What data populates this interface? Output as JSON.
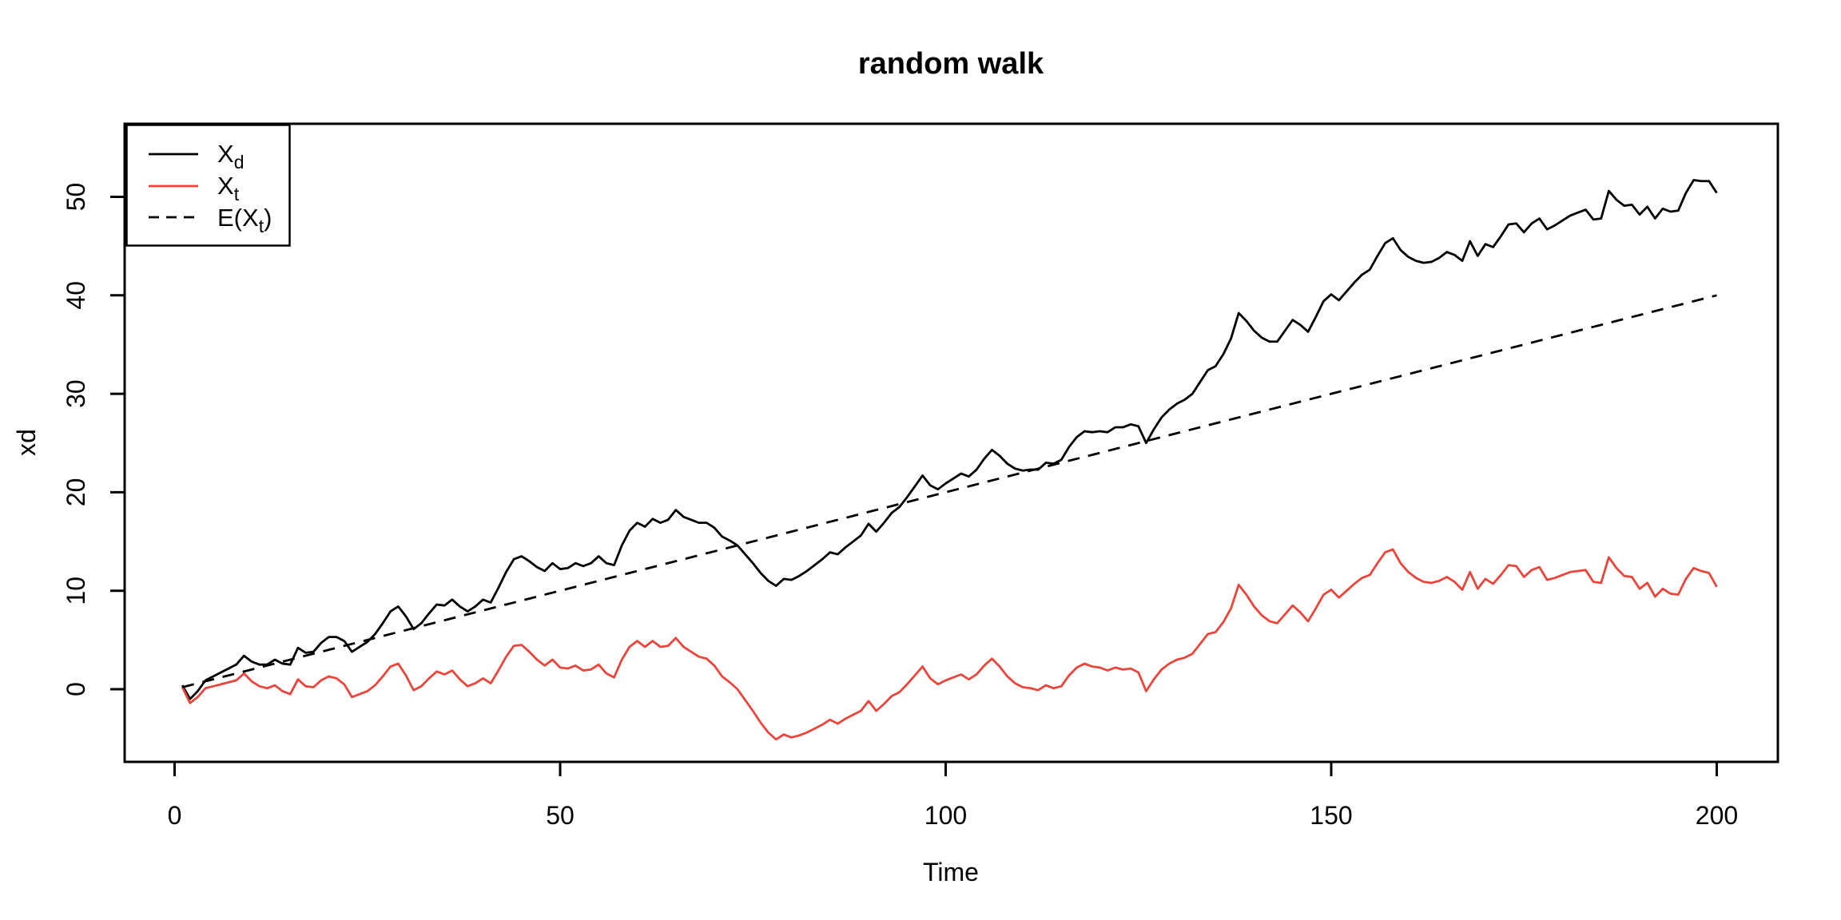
{
  "title": "random walk",
  "axes": {
    "x_label": "Time",
    "y_label": "xd",
    "x_ticks": [
      0,
      50,
      100,
      150,
      200
    ],
    "y_ticks": [
      0,
      10,
      20,
      30,
      40,
      50
    ]
  },
  "legend": {
    "items": [
      {
        "pre": "X",
        "sub": "d",
        "post": "",
        "color": "#000000",
        "dashed": false
      },
      {
        "pre": "X",
        "sub": "t",
        "post": "",
        "color": "#e8463c",
        "dashed": false
      },
      {
        "pre": "E(X",
        "sub": "t",
        "post": ")",
        "color": "#000000",
        "dashed": true
      }
    ]
  },
  "colors": {
    "black_series": "#000000",
    "red_series": "#e8463c",
    "trend_series": "#000000",
    "frame": "#000000",
    "background": "#ffffff"
  },
  "chart_data": {
    "type": "line",
    "title": "random walk",
    "xlabel": "Time",
    "ylabel": "xd",
    "x_range_shown": [
      -7,
      208
    ],
    "y_range_shown": [
      -7.4,
      57.4
    ],
    "grid": false,
    "legend_position": "topleft",
    "t": {
      "start": 1,
      "end": 200,
      "step": 1
    },
    "series": [
      {
        "name": "X_d",
        "style": "solid",
        "color": "#000000",
        "values": [
          0.4,
          -1.0,
          -0.2,
          0.9,
          1.3,
          1.7,
          2.1,
          2.5,
          3.4,
          2.8,
          2.5,
          2.5,
          3.0,
          2.6,
          2.5,
          4.2,
          3.7,
          3.8,
          4.7,
          5.3,
          5.3,
          4.9,
          3.8,
          4.3,
          4.8,
          5.6,
          6.7,
          7.9,
          8.4,
          7.4,
          6.1,
          6.7,
          7.7,
          8.6,
          8.5,
          9.1,
          8.4,
          7.9,
          8.4,
          9.1,
          8.8,
          10.3,
          11.9,
          13.2,
          13.5,
          13.0,
          12.4,
          12.0,
          12.8,
          12.2,
          12.3,
          12.8,
          12.5,
          12.8,
          13.5,
          12.8,
          12.6,
          14.6,
          16.1,
          16.9,
          16.5,
          17.3,
          16.9,
          17.2,
          18.2,
          17.5,
          17.2,
          16.9,
          16.9,
          16.4,
          15.5,
          15.1,
          14.6,
          13.7,
          12.8,
          11.8,
          11.0,
          10.5,
          11.2,
          11.1,
          11.5,
          12.0,
          12.6,
          13.2,
          13.9,
          13.7,
          14.4,
          15.0,
          15.6,
          16.8,
          16.0,
          16.9,
          17.9,
          18.5,
          19.5,
          20.6,
          21.7,
          20.7,
          20.3,
          20.9,
          21.4,
          21.9,
          21.6,
          22.3,
          23.4,
          24.3,
          23.7,
          22.9,
          22.4,
          22.2,
          22.3,
          22.3,
          23.0,
          22.9,
          23.3,
          24.6,
          25.6,
          26.2,
          26.1,
          26.2,
          26.1,
          26.6,
          26.6,
          26.9,
          26.7,
          25.0,
          26.4,
          27.6,
          28.4,
          29.0,
          29.4,
          30.0,
          31.2,
          32.4,
          32.8,
          34.0,
          35.6,
          38.2,
          37.4,
          36.4,
          35.7,
          35.3,
          35.3,
          36.4,
          37.5,
          37.0,
          36.3,
          37.8,
          39.4,
          40.1,
          39.5,
          40.4,
          41.3,
          42.1,
          42.6,
          44.0,
          45.3,
          45.8,
          44.6,
          43.9,
          43.5,
          43.3,
          43.4,
          43.8,
          44.4,
          44.1,
          43.5,
          45.5,
          44.0,
          45.2,
          44.9,
          46.0,
          47.2,
          47.3,
          46.4,
          47.3,
          47.8,
          46.7,
          47.1,
          47.6,
          48.1,
          48.4,
          48.7,
          47.7,
          47.8,
          50.6,
          49.7,
          49.1,
          49.2,
          48.2,
          49.0,
          47.8,
          48.8,
          48.5,
          48.6,
          50.4,
          51.7,
          51.6,
          51.6,
          50.4
        ]
      },
      {
        "name": "X_t",
        "style": "solid",
        "color": "#e8463c",
        "values": [
          0.2,
          -1.4,
          -0.8,
          0.1,
          0.3,
          0.5,
          0.7,
          0.9,
          1.6,
          0.8,
          0.3,
          0.1,
          0.4,
          -0.2,
          -0.5,
          1.0,
          0.3,
          0.2,
          0.9,
          1.3,
          1.1,
          0.5,
          -0.8,
          -0.5,
          -0.2,
          0.4,
          1.3,
          2.3,
          2.6,
          1.4,
          -0.1,
          0.3,
          1.1,
          1.8,
          1.5,
          1.9,
          1.0,
          0.3,
          0.6,
          1.1,
          0.6,
          1.9,
          3.3,
          4.4,
          4.5,
          3.8,
          3.0,
          2.4,
          3.0,
          2.2,
          2.1,
          2.4,
          1.9,
          2.0,
          2.5,
          1.6,
          1.2,
          3.0,
          4.3,
          4.9,
          4.3,
          4.9,
          4.3,
          4.4,
          5.2,
          4.3,
          3.8,
          3.3,
          3.1,
          2.4,
          1.3,
          0.7,
          0.0,
          -1.1,
          -2.2,
          -3.4,
          -4.4,
          -5.1,
          -4.6,
          -4.9,
          -4.7,
          -4.4,
          -4.0,
          -3.6,
          -3.1,
          -3.5,
          -3.0,
          -2.6,
          -2.2,
          -1.2,
          -2.2,
          -1.5,
          -0.7,
          -0.3,
          0.5,
          1.4,
          2.3,
          1.1,
          0.5,
          0.9,
          1.2,
          1.5,
          1.0,
          1.5,
          2.4,
          3.1,
          2.3,
          1.3,
          0.6,
          0.2,
          0.1,
          -0.1,
          0.4,
          0.1,
          0.3,
          1.4,
          2.2,
          2.6,
          2.3,
          2.2,
          1.9,
          2.2,
          2.0,
          2.1,
          1.7,
          -0.2,
          1.0,
          2.0,
          2.6,
          3.0,
          3.2,
          3.6,
          4.6,
          5.6,
          5.8,
          6.8,
          8.2,
          10.6,
          9.6,
          8.4,
          7.5,
          6.9,
          6.7,
          7.6,
          8.5,
          7.8,
          6.9,
          8.2,
          9.6,
          10.1,
          9.3,
          10.0,
          10.7,
          11.3,
          11.6,
          12.8,
          13.9,
          14.2,
          12.8,
          11.9,
          11.3,
          10.9,
          10.8,
          11.0,
          11.4,
          10.9,
          10.1,
          11.9,
          10.2,
          11.2,
          10.7,
          11.6,
          12.6,
          12.5,
          11.4,
          12.1,
          12.4,
          11.1,
          11.3,
          11.6,
          11.9,
          12.0,
          12.1,
          10.9,
          10.8,
          13.4,
          12.3,
          11.5,
          11.4,
          10.2,
          10.8,
          9.4,
          10.2,
          9.7,
          9.6,
          11.2,
          12.3,
          12.0,
          11.8,
          10.4
        ]
      },
      {
        "name": "E(X_t)",
        "style": "dashed",
        "color": "#000000",
        "linear": {
          "from_t": 1,
          "from_value": 0.2,
          "to_t": 200,
          "to_value": 40.0,
          "slope": 0.2
        }
      }
    ]
  }
}
